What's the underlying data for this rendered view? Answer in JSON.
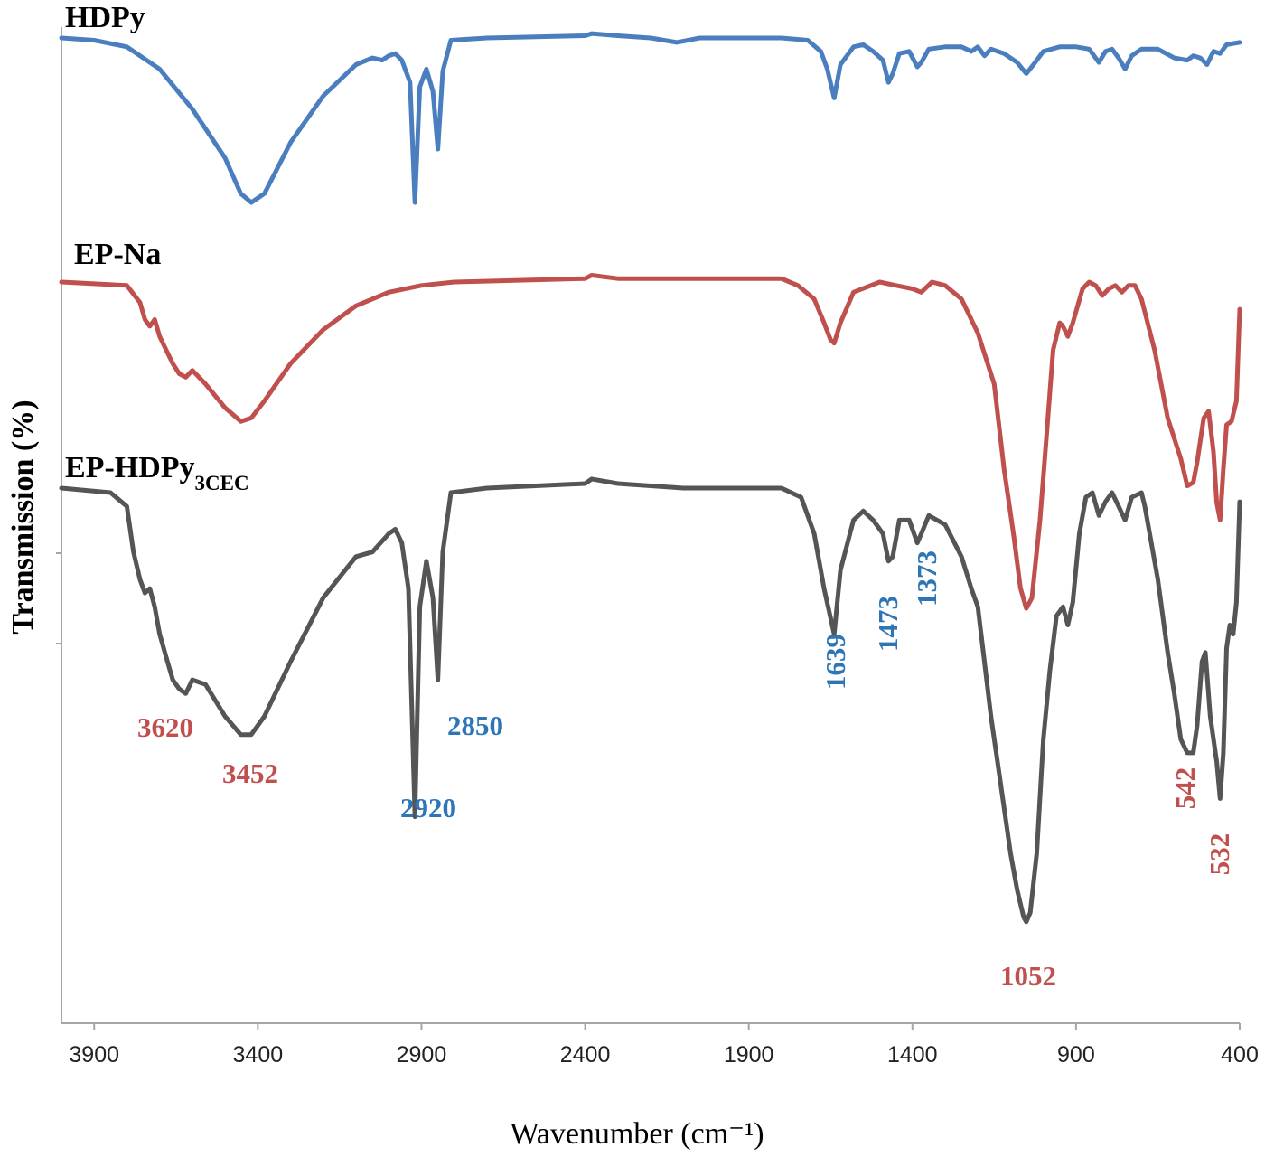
{
  "chart_data": {
    "type": "line",
    "xlabel": "Wavenumber (cm⁻¹)",
    "ylabel": "Transmission  (%)",
    "xlim": [
      4000,
      400
    ],
    "x_reversed": true,
    "x_ticks": [
      3900,
      3400,
      2900,
      2400,
      1900,
      1400,
      900,
      400
    ],
    "y_ticks_labeled": false,
    "grid": false,
    "legend": "none",
    "series": [
      {
        "name": "HDPy",
        "color": "#4a7ebf",
        "points": [
          [
            4000,
            1.0
          ],
          [
            3900,
            0.99
          ],
          [
            3800,
            0.96
          ],
          [
            3700,
            0.86
          ],
          [
            3600,
            0.68
          ],
          [
            3500,
            0.46
          ],
          [
            3452,
            0.3
          ],
          [
            3420,
            0.26
          ],
          [
            3380,
            0.3
          ],
          [
            3300,
            0.53
          ],
          [
            3200,
            0.74
          ],
          [
            3100,
            0.88
          ],
          [
            3050,
            0.91
          ],
          [
            3020,
            0.9
          ],
          [
            3000,
            0.92
          ],
          [
            2980,
            0.93
          ],
          [
            2960,
            0.9
          ],
          [
            2935,
            0.8
          ],
          [
            2920,
            0.26
          ],
          [
            2905,
            0.78
          ],
          [
            2885,
            0.86
          ],
          [
            2865,
            0.76
          ],
          [
            2850,
            0.5
          ],
          [
            2835,
            0.85
          ],
          [
            2810,
            0.99
          ],
          [
            2700,
            1.0
          ],
          [
            2400,
            1.01
          ],
          [
            2380,
            1.02
          ],
          [
            2300,
            1.01
          ],
          [
            2200,
            1.0
          ],
          [
            2120,
            0.98
          ],
          [
            2050,
            1.0
          ],
          [
            1800,
            1.0
          ],
          [
            1720,
            0.99
          ],
          [
            1680,
            0.94
          ],
          [
            1660,
            0.86
          ],
          [
            1639,
            0.73
          ],
          [
            1620,
            0.88
          ],
          [
            1580,
            0.96
          ],
          [
            1550,
            0.97
          ],
          [
            1520,
            0.94
          ],
          [
            1490,
            0.9
          ],
          [
            1473,
            0.8
          ],
          [
            1460,
            0.84
          ],
          [
            1440,
            0.93
          ],
          [
            1410,
            0.94
          ],
          [
            1385,
            0.87
          ],
          [
            1373,
            0.89
          ],
          [
            1350,
            0.95
          ],
          [
            1300,
            0.96
          ],
          [
            1250,
            0.96
          ],
          [
            1220,
            0.94
          ],
          [
            1200,
            0.96
          ],
          [
            1180,
            0.92
          ],
          [
            1160,
            0.95
          ],
          [
            1120,
            0.93
          ],
          [
            1080,
            0.89
          ],
          [
            1052,
            0.84
          ],
          [
            1030,
            0.88
          ],
          [
            1000,
            0.94
          ],
          [
            950,
            0.96
          ],
          [
            900,
            0.96
          ],
          [
            860,
            0.95
          ],
          [
            830,
            0.89
          ],
          [
            810,
            0.94
          ],
          [
            790,
            0.95
          ],
          [
            770,
            0.91
          ],
          [
            750,
            0.86
          ],
          [
            730,
            0.92
          ],
          [
            700,
            0.95
          ],
          [
            650,
            0.95
          ],
          [
            600,
            0.91
          ],
          [
            560,
            0.9
          ],
          [
            542,
            0.92
          ],
          [
            520,
            0.91
          ],
          [
            500,
            0.88
          ],
          [
            480,
            0.94
          ],
          [
            460,
            0.93
          ],
          [
            440,
            0.97
          ],
          [
            400,
            0.98
          ]
        ]
      },
      {
        "name": "EP-Na",
        "color": "#c0504d",
        "points": [
          [
            4000,
            1.0
          ],
          [
            3800,
            0.99
          ],
          [
            3760,
            0.94
          ],
          [
            3745,
            0.89
          ],
          [
            3730,
            0.87
          ],
          [
            3715,
            0.89
          ],
          [
            3700,
            0.84
          ],
          [
            3680,
            0.8
          ],
          [
            3660,
            0.76
          ],
          [
            3640,
            0.73
          ],
          [
            3620,
            0.72
          ],
          [
            3600,
            0.74
          ],
          [
            3560,
            0.7
          ],
          [
            3500,
            0.63
          ],
          [
            3452,
            0.59
          ],
          [
            3420,
            0.6
          ],
          [
            3380,
            0.65
          ],
          [
            3300,
            0.76
          ],
          [
            3200,
            0.86
          ],
          [
            3100,
            0.93
          ],
          [
            3000,
            0.97
          ],
          [
            2900,
            0.99
          ],
          [
            2800,
            1.0
          ],
          [
            2400,
            1.01
          ],
          [
            2380,
            1.02
          ],
          [
            2300,
            1.01
          ],
          [
            1800,
            1.01
          ],
          [
            1750,
            0.99
          ],
          [
            1700,
            0.95
          ],
          [
            1670,
            0.88
          ],
          [
            1650,
            0.83
          ],
          [
            1639,
            0.82
          ],
          [
            1620,
            0.88
          ],
          [
            1580,
            0.97
          ],
          [
            1500,
            1.0
          ],
          [
            1450,
            0.99
          ],
          [
            1400,
            0.98
          ],
          [
            1373,
            0.97
          ],
          [
            1340,
            1.0
          ],
          [
            1300,
            0.99
          ],
          [
            1250,
            0.95
          ],
          [
            1200,
            0.85
          ],
          [
            1150,
            0.7
          ],
          [
            1120,
            0.45
          ],
          [
            1090,
            0.25
          ],
          [
            1070,
            0.1
          ],
          [
            1052,
            0.04
          ],
          [
            1035,
            0.07
          ],
          [
            1010,
            0.3
          ],
          [
            990,
            0.55
          ],
          [
            970,
            0.8
          ],
          [
            950,
            0.88
          ],
          [
            940,
            0.87
          ],
          [
            925,
            0.84
          ],
          [
            910,
            0.88
          ],
          [
            880,
            0.98
          ],
          [
            860,
            1.0
          ],
          [
            840,
            0.99
          ],
          [
            820,
            0.96
          ],
          [
            800,
            0.98
          ],
          [
            780,
            0.99
          ],
          [
            760,
            0.97
          ],
          [
            740,
            0.99
          ],
          [
            720,
            0.99
          ],
          [
            700,
            0.95
          ],
          [
            660,
            0.8
          ],
          [
            620,
            0.6
          ],
          [
            580,
            0.48
          ],
          [
            560,
            0.4
          ],
          [
            542,
            0.41
          ],
          [
            530,
            0.47
          ],
          [
            510,
            0.6
          ],
          [
            495,
            0.62
          ],
          [
            480,
            0.5
          ],
          [
            470,
            0.35
          ],
          [
            460,
            0.3
          ],
          [
            450,
            0.45
          ],
          [
            440,
            0.58
          ],
          [
            425,
            0.59
          ],
          [
            410,
            0.65
          ],
          [
            400,
            0.92
          ]
        ]
      },
      {
        "name": "EP-HDPy3CEC",
        "color": "#555555",
        "points": [
          [
            4000,
            1.0
          ],
          [
            3850,
            0.99
          ],
          [
            3800,
            0.96
          ],
          [
            3780,
            0.86
          ],
          [
            3760,
            0.8
          ],
          [
            3745,
            0.77
          ],
          [
            3730,
            0.78
          ],
          [
            3715,
            0.74
          ],
          [
            3700,
            0.68
          ],
          [
            3680,
            0.63
          ],
          [
            3660,
            0.58
          ],
          [
            3640,
            0.56
          ],
          [
            3620,
            0.55
          ],
          [
            3600,
            0.58
          ],
          [
            3560,
            0.57
          ],
          [
            3500,
            0.5
          ],
          [
            3452,
            0.46
          ],
          [
            3420,
            0.46
          ],
          [
            3380,
            0.5
          ],
          [
            3300,
            0.62
          ],
          [
            3200,
            0.76
          ],
          [
            3100,
            0.85
          ],
          [
            3050,
            0.86
          ],
          [
            3000,
            0.9
          ],
          [
            2980,
            0.91
          ],
          [
            2960,
            0.88
          ],
          [
            2940,
            0.78
          ],
          [
            2920,
            0.28
          ],
          [
            2905,
            0.74
          ],
          [
            2885,
            0.84
          ],
          [
            2865,
            0.76
          ],
          [
            2850,
            0.58
          ],
          [
            2835,
            0.86
          ],
          [
            2810,
            0.99
          ],
          [
            2700,
            1.0
          ],
          [
            2400,
            1.01
          ],
          [
            2380,
            1.02
          ],
          [
            2300,
            1.01
          ],
          [
            2100,
            1.0
          ],
          [
            1800,
            1.0
          ],
          [
            1740,
            0.98
          ],
          [
            1700,
            0.9
          ],
          [
            1670,
            0.78
          ],
          [
            1639,
            0.68
          ],
          [
            1620,
            0.82
          ],
          [
            1580,
            0.93
          ],
          [
            1550,
            0.95
          ],
          [
            1520,
            0.93
          ],
          [
            1490,
            0.9
          ],
          [
            1473,
            0.84
          ],
          [
            1460,
            0.85
          ],
          [
            1440,
            0.93
          ],
          [
            1410,
            0.93
          ],
          [
            1385,
            0.88
          ],
          [
            1373,
            0.9
          ],
          [
            1350,
            0.94
          ],
          [
            1300,
            0.92
          ],
          [
            1250,
            0.85
          ],
          [
            1220,
            0.78
          ],
          [
            1200,
            0.74
          ],
          [
            1180,
            0.62
          ],
          [
            1160,
            0.5
          ],
          [
            1140,
            0.4
          ],
          [
            1120,
            0.3
          ],
          [
            1100,
            0.2
          ],
          [
            1080,
            0.12
          ],
          [
            1060,
            0.06
          ],
          [
            1052,
            0.05
          ],
          [
            1040,
            0.07
          ],
          [
            1020,
            0.2
          ],
          [
            1000,
            0.45
          ],
          [
            980,
            0.6
          ],
          [
            960,
            0.72
          ],
          [
            940,
            0.74
          ],
          [
            925,
            0.7
          ],
          [
            910,
            0.75
          ],
          [
            890,
            0.9
          ],
          [
            870,
            0.98
          ],
          [
            850,
            0.99
          ],
          [
            830,
            0.94
          ],
          [
            810,
            0.97
          ],
          [
            790,
            0.99
          ],
          [
            770,
            0.96
          ],
          [
            750,
            0.93
          ],
          [
            730,
            0.98
          ],
          [
            700,
            0.99
          ],
          [
            690,
            0.96
          ],
          [
            650,
            0.8
          ],
          [
            620,
            0.64
          ],
          [
            600,
            0.55
          ],
          [
            580,
            0.45
          ],
          [
            560,
            0.42
          ],
          [
            542,
            0.42
          ],
          [
            530,
            0.48
          ],
          [
            515,
            0.62
          ],
          [
            505,
            0.64
          ],
          [
            490,
            0.5
          ],
          [
            470,
            0.4
          ],
          [
            460,
            0.32
          ],
          [
            450,
            0.42
          ],
          [
            440,
            0.65
          ],
          [
            430,
            0.7
          ],
          [
            420,
            0.68
          ],
          [
            410,
            0.75
          ],
          [
            400,
            0.97
          ]
        ]
      }
    ],
    "annotations": [
      {
        "text": "3620",
        "color": "#c0504d"
      },
      {
        "text": "3452",
        "color": "#c0504d"
      },
      {
        "text": "2920",
        "color": "#2e75b6"
      },
      {
        "text": "2850",
        "color": "#2e75b6"
      },
      {
        "text": "1639",
        "color": "#2e75b6"
      },
      {
        "text": "1473",
        "color": "#2e75b6"
      },
      {
        "text": "1373",
        "color": "#2e75b6"
      },
      {
        "text": "1052",
        "color": "#c0504d"
      },
      {
        "text": "542",
        "color": "#c0504d"
      },
      {
        "text": "532",
        "color": "#c0504d"
      }
    ]
  }
}
